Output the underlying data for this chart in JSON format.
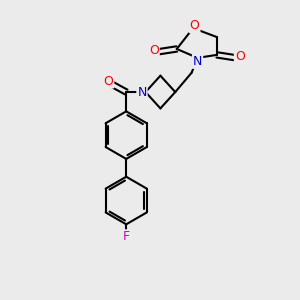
{
  "bg_color": "#ebebeb",
  "bond_color": "#000000",
  "bond_width": 1.5,
  "atom_colors": {
    "O": "#ff0000",
    "N": "#0000cc",
    "F": "#cc00cc",
    "C": "#000000"
  },
  "font_size": 8.5,
  "figsize": [
    3.0,
    3.0
  ],
  "dpi": 100
}
